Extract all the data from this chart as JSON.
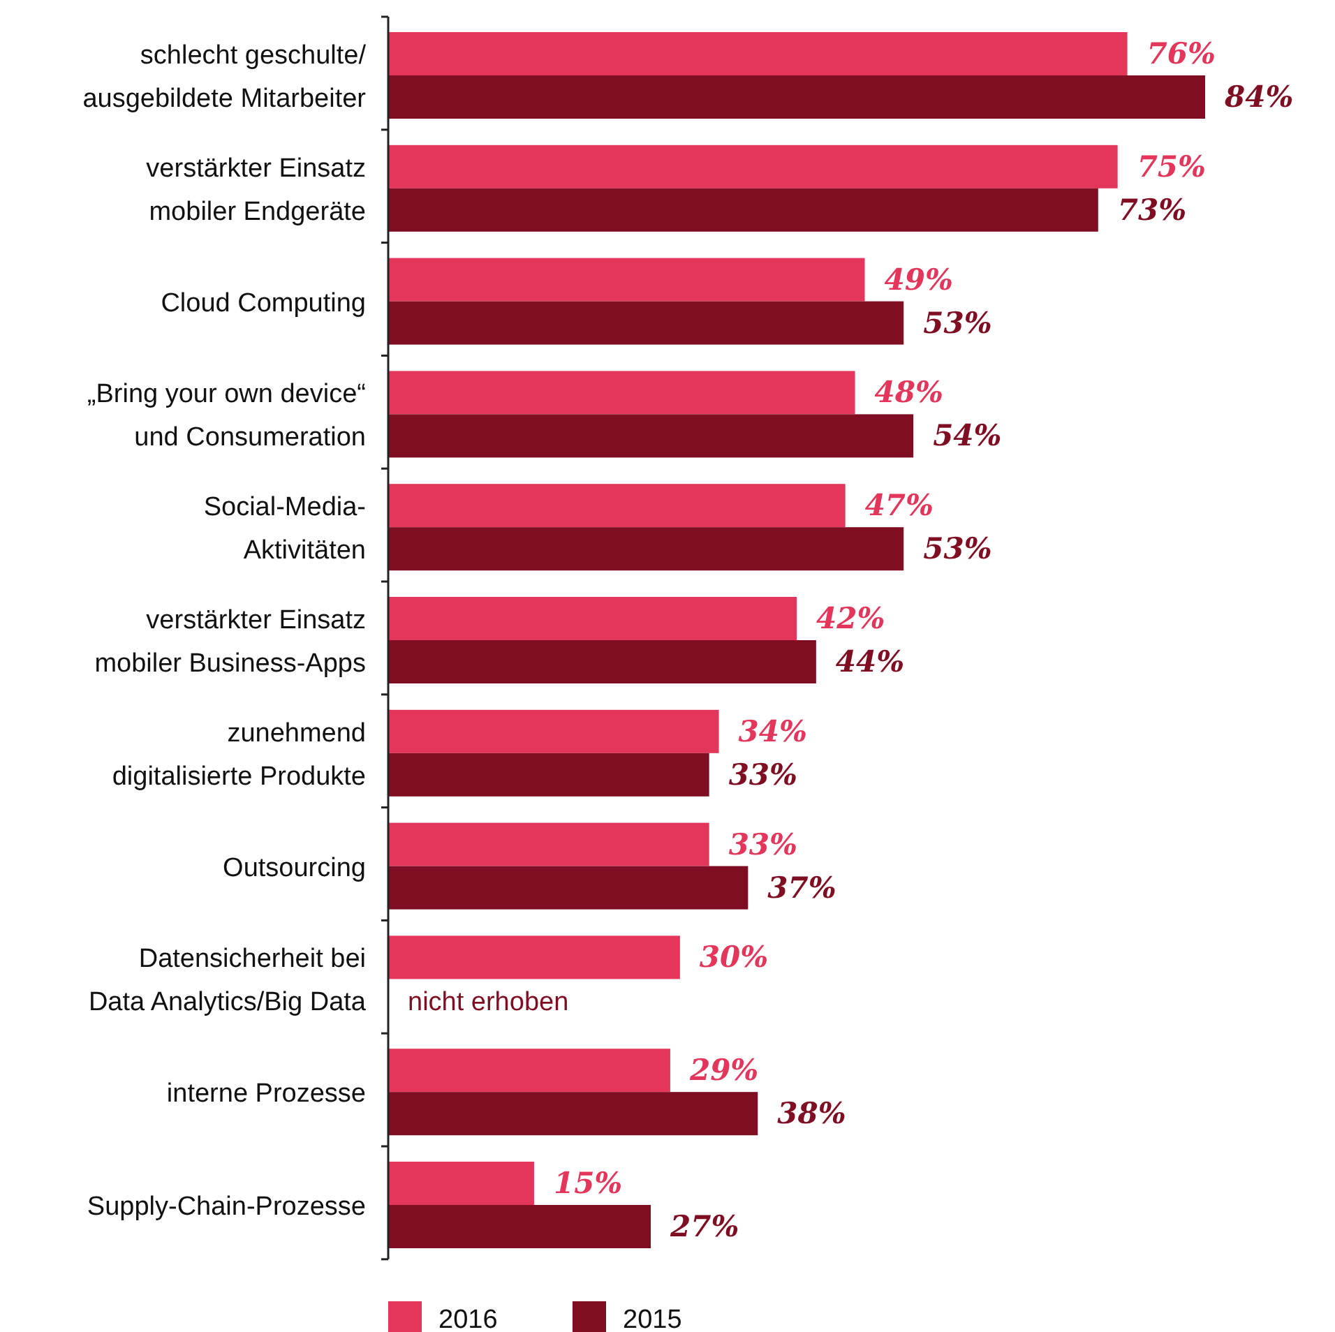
{
  "chart_data": {
    "type": "bar",
    "orientation": "horizontal",
    "categories": [
      "schlecht geschulte/\nausgebildete Mitarbeiter",
      "verstärkter Einsatz\nmobiler Endgeräte",
      "Cloud Computing",
      "„Bring your own device“\nund Consumeration",
      "Social-Media-\nAktivitäten",
      "verstärkter Einsatz\nmobiler Business-Apps",
      "zunehmend\ndigitalisierte Produkte",
      "Outsourcing",
      "Datensicherheit bei\nData Analytics/Big Data",
      "interne Prozesse",
      "Supply-Chain-Prozesse"
    ],
    "series": [
      {
        "name": "2016",
        "color": "#e3365a",
        "values": [
          76,
          75,
          49,
          48,
          47,
          42,
          34,
          33,
          30,
          29,
          15
        ],
        "value_labels": [
          "76%",
          "75%",
          "49%",
          "48%",
          "47%",
          "42%",
          "34%",
          "33%",
          "30%",
          "29%",
          "15%"
        ]
      },
      {
        "name": "2015",
        "color": "#7f0e22",
        "values": [
          84,
          73,
          53,
          54,
          53,
          44,
          33,
          37,
          null,
          38,
          27
        ],
        "value_labels": [
          "84%",
          "73%",
          "53%",
          "54%",
          "53%",
          "44%",
          "33%",
          "37%",
          "nicht erhoben",
          "38%",
          "27%"
        ]
      }
    ],
    "legend": "bottom",
    "grid": false
  }
}
